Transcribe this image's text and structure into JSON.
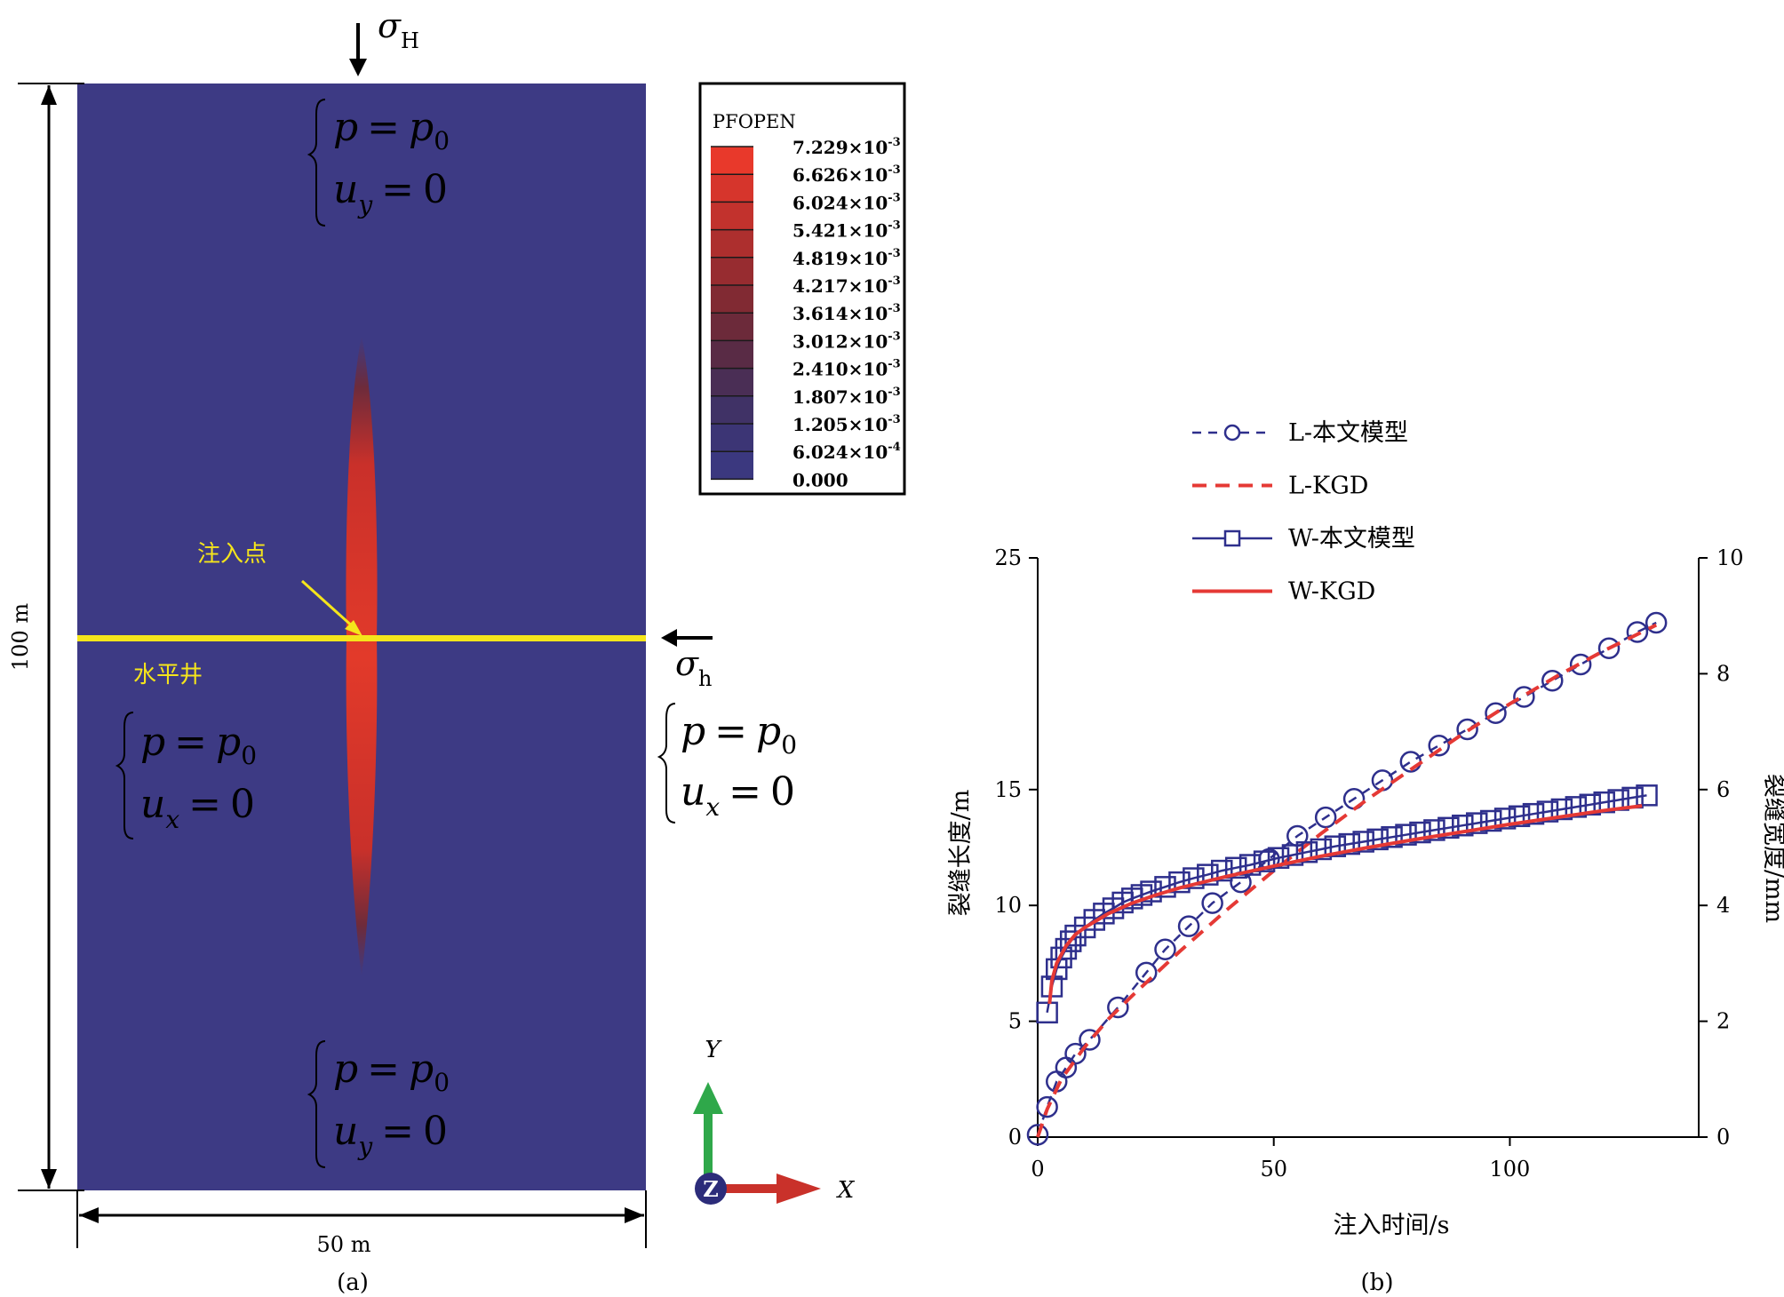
{
  "panel_a": {
    "caption": "(a)",
    "stress_vertical": {
      "symbol": "σ",
      "subscript": "H"
    },
    "stress_horizontal": {
      "symbol": "σ",
      "subscript": "h"
    },
    "height_label": "100 m",
    "width_label": "50 m",
    "well_label": "水平井",
    "injection_label": "注入点",
    "well_color": "#f5e51b",
    "domain_color": "#3d3a84",
    "fracture_color": "#e23a2a",
    "bc_top": {
      "line1": {
        "var": "p",
        "eq": "=",
        "rhs": "p",
        "rhs_sub": "0"
      },
      "line2": {
        "var": "u",
        "var_sub": "y",
        "eq": "=",
        "rhs": "0"
      }
    },
    "bc_bottom": {
      "line1": {
        "var": "p",
        "eq": "=",
        "rhs": "p",
        "rhs_sub": "0"
      },
      "line2": {
        "var": "u",
        "var_sub": "y",
        "eq": "=",
        "rhs": "0"
      }
    },
    "bc_left": {
      "line1": {
        "var": "p",
        "eq": "=",
        "rhs": "p",
        "rhs_sub": "0"
      },
      "line2": {
        "var": "u",
        "var_sub": "x",
        "eq": "=",
        "rhs": "0"
      }
    },
    "bc_right": {
      "line1": {
        "var": "p",
        "eq": "=",
        "rhs": "p",
        "rhs_sub": "0"
      },
      "line2": {
        "var": "u",
        "var_sub": "x",
        "eq": "=",
        "rhs": "0"
      }
    },
    "legend": {
      "title": "PFOPEN",
      "entries": [
        {
          "mant": "7.229",
          "exp": "-3",
          "color": "#e8392b"
        },
        {
          "mant": "6.626",
          "exp": "-3",
          "color": "#d6352c"
        },
        {
          "mant": "6.024",
          "exp": "-3",
          "color": "#c2322d"
        },
        {
          "mant": "5.421",
          "exp": "-3",
          "color": "#ad2f2e"
        },
        {
          "mant": "4.819",
          "exp": "-3",
          "color": "#972c30"
        },
        {
          "mant": "4.217",
          "exp": "-3",
          "color": "#812a33"
        },
        {
          "mant": "3.614",
          "exp": "-3",
          "color": "#6c2a3a"
        },
        {
          "mant": "3.012",
          "exp": "-3",
          "color": "#592b45"
        },
        {
          "mant": "2.410",
          "exp": "-3",
          "color": "#4a2e55"
        },
        {
          "mant": "1.807",
          "exp": "-3",
          "color": "#403266"
        },
        {
          "mant": "1.205",
          "exp": "-3",
          "color": "#3c3575"
        },
        {
          "mant": "6.024",
          "exp": "-4",
          "color": "#3b387f"
        },
        {
          "mant": "0.000",
          "exp": "",
          "color": "#3d3a84"
        }
      ]
    },
    "axes_triad": {
      "y_label": "Y",
      "x_label": "X",
      "z_label": "Z"
    },
    "triad_icon": "xyz-axis-triad-icon"
  },
  "panel_b": {
    "caption": "(b)"
  },
  "chart_data": {
    "type": "line",
    "xlabel": "注入时间/s",
    "ylabel_left": "裂缝长度/m",
    "ylabel_right": "裂缝宽度/mm",
    "xlim": [
      0,
      140
    ],
    "ylim_left": [
      0,
      25
    ],
    "ylim_right": [
      0,
      10
    ],
    "xticks": [
      0,
      50,
      100
    ],
    "yticks_left": [
      0,
      5,
      10,
      15,
      25
    ],
    "yticks_right": [
      0,
      2,
      4,
      6,
      8,
      10
    ],
    "legend_position": "top",
    "series": [
      {
        "name": "L-本文模型",
        "axis": "left",
        "style": "dashed",
        "marker": "circle",
        "color": "#2e2f8c",
        "x": [
          0,
          2,
          4,
          6,
          8,
          11,
          17,
          23,
          27,
          32,
          37,
          43,
          49,
          55,
          61,
          67,
          73,
          79,
          85,
          91,
          97,
          103,
          109,
          115,
          121,
          127,
          131
        ],
        "y": [
          0.1,
          1.3,
          2.4,
          3.0,
          3.6,
          4.2,
          5.6,
          7.1,
          8.1,
          9.1,
          10.1,
          11.0,
          12.0,
          13.0,
          13.8,
          14.6,
          15.4,
          16.2,
          16.9,
          17.6,
          18.3,
          19.0,
          19.7,
          20.4,
          21.1,
          21.8,
          22.2
        ]
      },
      {
        "name": "L-KGD",
        "axis": "left",
        "style": "dashed",
        "marker": "none",
        "color": "#e53935",
        "x": [
          0,
          2,
          5,
          10,
          15,
          20,
          30,
          40,
          50,
          60,
          70,
          80,
          90,
          100,
          110,
          120,
          131
        ],
        "y": [
          0,
          1.2,
          2.5,
          3.9,
          5.1,
          6.1,
          8.0,
          9.8,
          11.5,
          13.1,
          14.6,
          16.0,
          17.4,
          18.7,
          19.9,
          21.0,
          22.1
        ]
      },
      {
        "name": "W-本文模型",
        "axis": "right",
        "style": "solid",
        "marker": "square",
        "color": "#2e2f8c",
        "x": [
          2,
          3,
          4,
          5,
          6,
          7,
          8,
          10,
          12,
          14,
          16,
          18,
          20,
          22,
          24,
          27,
          30,
          33,
          36,
          39,
          42,
          45,
          48,
          51,
          54,
          57,
          60,
          63,
          66,
          69,
          72,
          75,
          78,
          81,
          84,
          87,
          90,
          93,
          96,
          99,
          102,
          105,
          108,
          111,
          114,
          117,
          120,
          123,
          126,
          129
        ],
        "y": [
          2.15,
          2.6,
          2.9,
          3.1,
          3.25,
          3.38,
          3.48,
          3.62,
          3.75,
          3.86,
          3.95,
          4.05,
          4.12,
          4.18,
          4.24,
          4.32,
          4.4,
          4.47,
          4.53,
          4.6,
          4.65,
          4.7,
          4.76,
          4.82,
          4.87,
          4.92,
          4.97,
          5.02,
          5.06,
          5.1,
          5.14,
          5.18,
          5.22,
          5.26,
          5.3,
          5.34,
          5.38,
          5.42,
          5.46,
          5.5,
          5.54,
          5.58,
          5.62,
          5.66,
          5.7,
          5.74,
          5.78,
          5.82,
          5.86,
          5.9
        ]
      },
      {
        "name": "W-KGD",
        "axis": "right",
        "style": "solid",
        "marker": "none",
        "color": "#e53935",
        "x": [
          2.5,
          3,
          4,
          6,
          8,
          10,
          15,
          20,
          25,
          30,
          40,
          50,
          60,
          70,
          80,
          90,
          100,
          110,
          120,
          128
        ],
        "y": [
          2.3,
          2.7,
          3.0,
          3.3,
          3.5,
          3.62,
          3.86,
          4.04,
          4.18,
          4.3,
          4.5,
          4.68,
          4.85,
          5.0,
          5.14,
          5.27,
          5.4,
          5.52,
          5.64,
          5.72
        ]
      }
    ]
  }
}
